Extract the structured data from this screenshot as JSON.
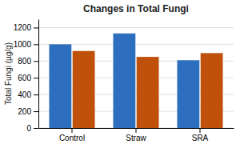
{
  "chart_data": {
    "type": "bar",
    "title": "Changes in Total Fungi",
    "ylabel": "Total Fungi (µg/g)",
    "categories": [
      "Control",
      "Straw",
      "SRA"
    ],
    "series": [
      {
        "color": "#2E6EBF",
        "values": [
          1000,
          1130,
          810
        ]
      },
      {
        "color": "#C0510A",
        "values": [
          920,
          850,
          895
        ]
      }
    ],
    "ylim": [
      0,
      1300
    ],
    "yticks": [
      0,
      200,
      400,
      600,
      800,
      1000,
      1200
    ],
    "grid": true
  }
}
